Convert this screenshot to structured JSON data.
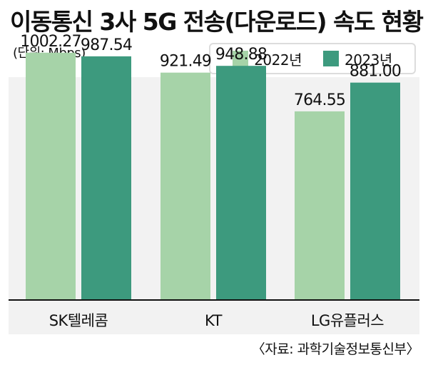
{
  "title": "이동통신 3사 5G 전송(다운로드) 속도 현황",
  "unit": "(단위: Mbps)",
  "source": "〈자료: 과학기술정보통신부〉",
  "colors": {
    "y2022": "#a6d3a8",
    "y2023": "#3d9a7e",
    "axis": "#111111",
    "background": "#f2f2f2"
  },
  "chart_data": {
    "type": "bar",
    "categories": [
      "SK텔레콤",
      "KT",
      "LG유플러스"
    ],
    "series": [
      {
        "name": "2022년",
        "values": [
          1002.27,
          921.49,
          764.55
        ]
      },
      {
        "name": "2023년",
        "values": [
          987.54,
          948.88,
          881.0
        ]
      }
    ],
    "value_labels": [
      [
        "1002.27",
        "921.49",
        "764.55"
      ],
      [
        "987.54",
        "948.88",
        "881.00"
      ]
    ],
    "ylim": [
      0,
      1100
    ],
    "legend": "top-right",
    "grid": false
  }
}
